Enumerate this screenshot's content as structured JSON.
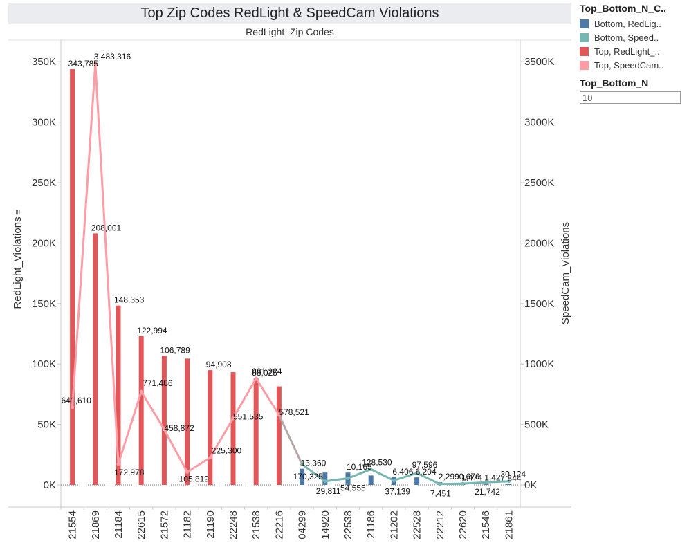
{
  "title": "Top Zip Codes RedLight & SpeedCam Violations",
  "legend": {
    "title": "Top_Bottom_N_C..",
    "items": [
      {
        "label": "Bottom, RedLig..",
        "color": "#4e79a7"
      },
      {
        "label": "Bottom, Speed..",
        "color": "#76b7b2"
      },
      {
        "label": "Top, RedLight_..",
        "color": "#e15759"
      },
      {
        "label": "Top, SpeedCam..",
        "color": "#ff9da7"
      }
    ]
  },
  "filter": {
    "title": "Top_Bottom_N",
    "value": "10"
  },
  "chart_data": {
    "type": "bar+line",
    "subtitle": "RedLight_Zip Codes",
    "ylabel_left": "RedLight_Violations",
    "ylabel_right": "SpeedCam_Violations",
    "left_ticks": [
      "0K",
      "50K",
      "100K",
      "150K",
      "200K",
      "250K",
      "300K",
      "350K"
    ],
    "right_ticks": [
      "0K",
      "500K",
      "1000K",
      "1500K",
      "2000K",
      "2500K",
      "3000K",
      "3500K"
    ],
    "ylim_left": [
      0,
      360000
    ],
    "ylim_right": [
      0,
      3600000
    ],
    "categories": [
      "21554",
      "21869",
      "21184",
      "22615",
      "21572",
      "21182",
      "21190",
      "22248",
      "21538",
      "22216",
      "04299",
      "14920",
      "22538",
      "21186",
      "21202",
      "22528",
      "22212",
      "22620",
      "21546",
      "21861"
    ],
    "group": [
      "Top",
      "Top",
      "Top",
      "Top",
      "Top",
      "Top",
      "Top",
      "Top",
      "Top",
      "Top",
      "Bottom",
      "Bottom",
      "Bottom",
      "Bottom",
      "Bottom",
      "Bottom",
      "Bottom",
      "Bottom",
      "Bottom",
      "Bottom"
    ],
    "redlight": [
      343785,
      208001,
      148353,
      122994,
      106789,
      104500,
      94908,
      93200,
      88025,
      81500,
      13360,
      10200,
      10165,
      7800,
      6406,
      6204,
      2299,
      1474,
      1427,
      844
    ],
    "redlight_labels": [
      "343,785",
      "208,001",
      "148,353",
      "122,994",
      "106,789",
      "",
      "94,908",
      "",
      "88,025",
      "",
      "13,360",
      "",
      "10,165",
      "",
      "6,406",
      "6,204",
      "2,299",
      "1,474",
      "1,427",
      "844"
    ],
    "speedcam": [
      641610,
      3483316,
      172978,
      771486,
      458872,
      105819,
      225300,
      551535,
      881224,
      578521,
      170325,
      29811,
      54555,
      128530,
      37139,
      97596,
      7451,
      10676,
      21742,
      30124
    ],
    "speedcam_labels": [
      "641,610",
      "3,483,316",
      "172,978",
      "771,486",
      "458,872",
      "105,819",
      "225,300",
      "551,535",
      "881,224",
      "578,521",
      "170,325",
      "29,811",
      "54,555",
      "128,530",
      "37,139",
      "97,596",
      "7,451",
      "10,676",
      "21,742",
      "30,124"
    ]
  }
}
